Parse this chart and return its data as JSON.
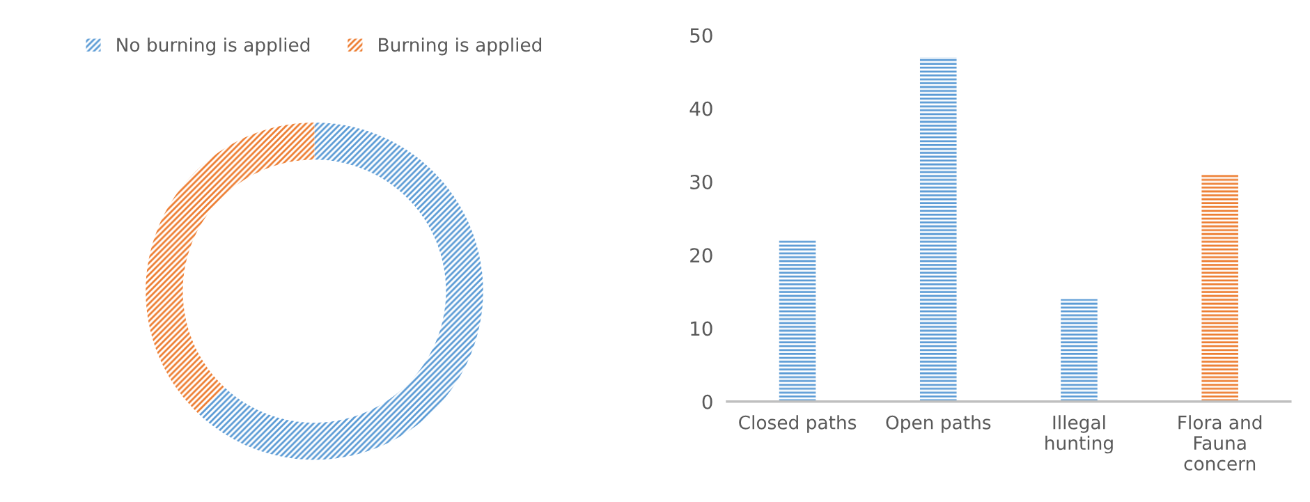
{
  "chart_data": [
    {
      "type": "donut",
      "categories": [
        "No burning is applied",
        "Burning is applied"
      ],
      "values": [
        62,
        38
      ],
      "colors": [
        "#5b9bd5",
        "#ed7d31"
      ],
      "legend": "top"
    },
    {
      "type": "bar",
      "categories": [
        "Closed paths",
        "Open paths",
        "Illegal\nhunting",
        "Flora and\nFauna\nconcern"
      ],
      "values": [
        22,
        47,
        14,
        31
      ],
      "colors": [
        "#5b9bd5",
        "#5b9bd5",
        "#5b9bd5",
        "#ed7d31"
      ],
      "ylim": [
        0,
        50
      ],
      "yticks": [
        0,
        10,
        20,
        30,
        40,
        50
      ],
      "grid": false
    }
  ]
}
